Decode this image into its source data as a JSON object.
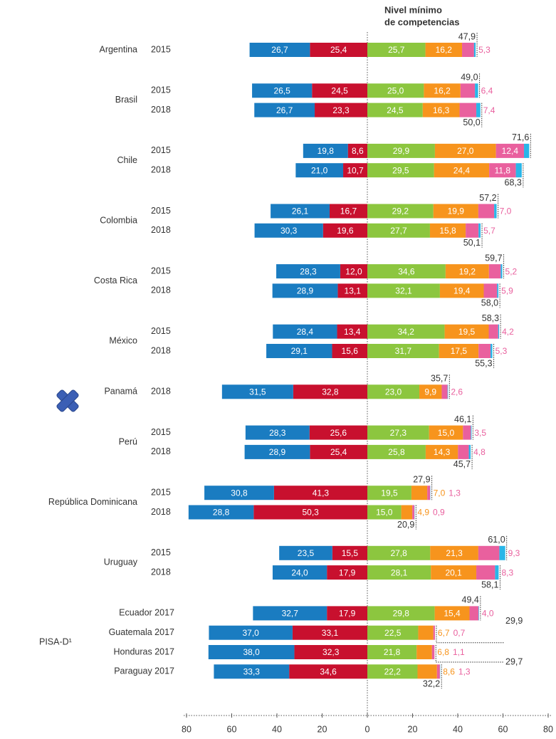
{
  "chart_data": {
    "type": "diverging-bar",
    "title_lines": [
      "Nivel mínimo",
      "de competencias"
    ],
    "groups": [
      {
        "label": "Argentina",
        "rows": [
          "2015"
        ]
      },
      {
        "label": "Brasil",
        "rows": [
          "2015",
          "2018"
        ]
      },
      {
        "label": "Chile",
        "rows": [
          "2015",
          "2018"
        ]
      },
      {
        "label": "Colombia",
        "rows": [
          "2015",
          "2018"
        ]
      },
      {
        "label": "Costa Rica",
        "rows": [
          "2015",
          "2018"
        ]
      },
      {
        "label": "México",
        "rows": [
          "2015",
          "2018"
        ]
      },
      {
        "label": "Panamá",
        "rows": [
          "2018"
        ]
      },
      {
        "label": "Perú",
        "rows": [
          "2015",
          "2018"
        ]
      },
      {
        "label": "República Dominicana",
        "rows": [
          "2015",
          "2018"
        ]
      },
      {
        "label": "Uruguay",
        "rows": [
          "2015",
          "2018"
        ]
      },
      {
        "label": "PISA-D¹",
        "rows": [
          "Ecuador 2017",
          "Guatemala 2017",
          "Honduras 2017",
          "Paraguay 2017"
        ]
      }
    ],
    "series": [
      {
        "side": "left",
        "color": "#c8102e",
        "values": [
          25.4,
          24.5,
          23.3,
          8.6,
          10.7,
          16.7,
          19.6,
          12.0,
          13.1,
          13.4,
          15.6,
          32.8,
          25.6,
          25.4,
          41.3,
          50.3,
          15.5,
          17.9,
          17.9,
          33.1,
          32.3,
          34.6
        ],
        "value_labels": [
          "25,4",
          "24,5",
          "23,3",
          "8,6",
          "10,7",
          "16,7",
          "19,6",
          "12,0",
          "13,1",
          "13,4",
          "15,6",
          "32,8",
          "25,6",
          "25,4",
          "41,3",
          "50,3",
          "15,5",
          "17,9",
          "17,9",
          "33,1",
          "32,3",
          "34,6"
        ]
      },
      {
        "side": "left",
        "color": "#1a7cc1",
        "values": [
          26.7,
          26.5,
          26.7,
          19.8,
          21.0,
          26.1,
          30.3,
          28.3,
          28.9,
          28.4,
          29.1,
          31.5,
          28.3,
          28.9,
          30.8,
          28.8,
          23.5,
          24.0,
          32.7,
          37.0,
          38.0,
          33.3
        ],
        "value_labels": [
          "26,7",
          "26,5",
          "26,7",
          "19,8",
          "21,0",
          "26,1",
          "30,3",
          "28,3",
          "28,9",
          "28,4",
          "29,1",
          "31,5",
          "28,3",
          "28,9",
          "30,8",
          "28,8",
          "23,5",
          "24,0",
          "32,7",
          "37,0",
          "38,0",
          "33,3"
        ]
      },
      {
        "side": "right",
        "color": "#8cc63f",
        "values": [
          25.7,
          25.0,
          24.5,
          29.9,
          29.5,
          29.2,
          27.7,
          34.6,
          32.1,
          34.2,
          31.7,
          23.0,
          27.3,
          25.8,
          19.5,
          15.0,
          27.8,
          28.1,
          29.8,
          22.5,
          21.8,
          22.2
        ],
        "value_labels": [
          "25,7",
          "25,0",
          "24,5",
          "29,9",
          "29,5",
          "29,2",
          "27,7",
          "34,6",
          "32,1",
          "34,2",
          "31,7",
          "23,0",
          "27,3",
          "25,8",
          "19,5",
          "15,0",
          "27,8",
          "28,1",
          "29,8",
          "22,5",
          "21,8",
          "22,2"
        ]
      },
      {
        "side": "right",
        "color": "#f7941d",
        "values": [
          16.2,
          16.2,
          16.3,
          27.0,
          24.4,
          19.9,
          15.8,
          19.2,
          19.4,
          19.5,
          17.5,
          9.9,
          15.0,
          14.3,
          7.0,
          4.9,
          21.3,
          20.1,
          15.4,
          6.7,
          6.8,
          8.6
        ],
        "value_labels": [
          "16,2",
          "16,2",
          "16,3",
          "27,0",
          "24,4",
          "19,9",
          "15,8",
          "19,2",
          "19,4",
          "19,5",
          "17,5",
          "9,9",
          "15,0",
          "14,3",
          "7,0",
          "4,9",
          "21,3",
          "20,1",
          "15,4",
          "6,7",
          "6,8",
          "8,6"
        ]
      },
      {
        "side": "right",
        "color": "#e9609e",
        "values": [
          5.3,
          6.4,
          7.4,
          12.4,
          11.8,
          7.0,
          5.7,
          5.2,
          5.9,
          4.2,
          5.3,
          2.6,
          3.5,
          4.8,
          1.3,
          0.9,
          9.3,
          8.3,
          4.0,
          0.7,
          1.1,
          1.3
        ],
        "value_labels": [
          "5,3",
          "6,4",
          "7,4",
          "12,4",
          "11,8",
          "7,0",
          "5,7",
          "5,2",
          "5,9",
          "4,2",
          "5,3",
          "2,6",
          "3,5",
          "4,8",
          "1,3",
          "0,9",
          "9,3",
          "8,3",
          "4,0",
          "0,7",
          "1,1",
          "1,3"
        ]
      },
      {
        "side": "right",
        "color": "#29b6e8",
        "values": [
          0.7,
          1.4,
          1.8,
          2.3,
          2.6,
          1.1,
          0.9,
          0.7,
          0.6,
          0.4,
          0.8,
          0.2,
          0.3,
          0.8,
          0.1,
          0.1,
          2.6,
          1.6,
          0.2,
          0,
          0,
          0.1
        ]
      }
    ],
    "totals": {
      "values": [
        47.9,
        49.0,
        50.0,
        71.6,
        68.3,
        57.2,
        50.1,
        59.7,
        58.0,
        58.3,
        55.3,
        35.7,
        46.1,
        45.7,
        27.9,
        20.9,
        61.0,
        58.1,
        49.4,
        29.9,
        29.7,
        32.2
      ],
      "value_labels": [
        "47,9",
        "49,0",
        "50,0",
        "71,6",
        "68,3",
        "57,2",
        "50,1",
        "59,7",
        "58,0",
        "58,3",
        "55,3",
        "35,7",
        "46,1",
        "45,7",
        "27,9",
        "20,9",
        "61,0",
        "58,1",
        "49,4",
        "29,9",
        "29,7",
        "32,2"
      ]
    },
    "xlim": [
      -80,
      80
    ],
    "xticks": [
      {
        "value": -80,
        "label": "80"
      },
      {
        "value": -60,
        "label": "60"
      },
      {
        "value": -40,
        "label": "40"
      },
      {
        "value": -20,
        "label": "20"
      },
      0,
      20,
      40,
      60,
      80
    ]
  }
}
